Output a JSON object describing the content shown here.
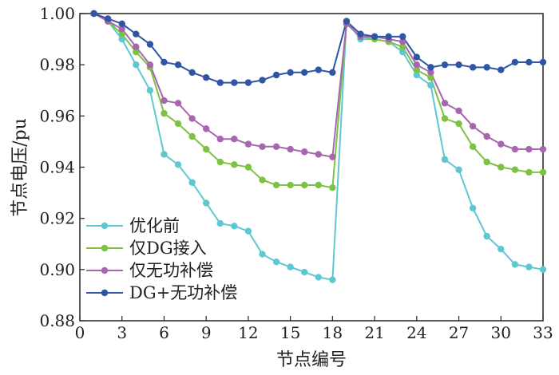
{
  "chart_data": {
    "type": "line",
    "xlabel": "节点编号",
    "ylabel": "节点电压/pu",
    "xlim": [
      0,
      33
    ],
    "ylim": [
      0.88,
      1.0
    ],
    "xticks": [
      0,
      3,
      6,
      9,
      12,
      15,
      18,
      21,
      24,
      27,
      30,
      33
    ],
    "yticks": [
      0.88,
      0.9,
      0.92,
      0.94,
      0.96,
      0.98,
      1.0
    ],
    "xtick_labels": [
      "0",
      "3",
      "6",
      "9",
      "12",
      "15",
      "18",
      "21",
      "24",
      "27",
      "30",
      "33"
    ],
    "ytick_labels": [
      "0.88",
      "0.90",
      "0.92",
      "0.94",
      "0.96",
      "0.98",
      "1.00"
    ],
    "grid": false,
    "legend_position": "bottom-left",
    "segments": [
      [
        1,
        18
      ],
      [
        19,
        33
      ]
    ],
    "connector": [
      18,
      19
    ],
    "series": [
      {
        "name": "优化前",
        "color": "#5ec8d2",
        "x": [
          1,
          2,
          3,
          4,
          5,
          6,
          7,
          8,
          9,
          10,
          11,
          12,
          13,
          14,
          15,
          16,
          17,
          18,
          19,
          20,
          21,
          22,
          23,
          24,
          25,
          26,
          27,
          28,
          29,
          30,
          31,
          32,
          33
        ],
        "values": [
          1.0,
          0.997,
          0.99,
          0.98,
          0.97,
          0.945,
          0.941,
          0.934,
          0.926,
          0.918,
          0.917,
          0.915,
          0.906,
          0.903,
          0.901,
          0.899,
          0.897,
          0.896,
          0.997,
          0.99,
          0.99,
          0.989,
          0.985,
          0.976,
          0.972,
          0.943,
          0.939,
          0.924,
          0.913,
          0.908,
          0.902,
          0.901,
          0.9
        ]
      },
      {
        "name": "仅DG接入",
        "color": "#7dc242",
        "x": [
          1,
          2,
          3,
          4,
          5,
          6,
          7,
          8,
          9,
          10,
          11,
          12,
          13,
          14,
          15,
          16,
          17,
          18,
          19,
          20,
          21,
          22,
          23,
          24,
          25,
          26,
          27,
          28,
          29,
          30,
          31,
          32,
          33
        ],
        "values": [
          1.0,
          0.997,
          0.992,
          0.985,
          0.979,
          0.961,
          0.957,
          0.952,
          0.947,
          0.942,
          0.941,
          0.94,
          0.935,
          0.933,
          0.933,
          0.933,
          0.933,
          0.932,
          0.996,
          0.991,
          0.99,
          0.989,
          0.987,
          0.978,
          0.975,
          0.959,
          0.957,
          0.948,
          0.942,
          0.94,
          0.939,
          0.938,
          0.938
        ]
      },
      {
        "name": "仅无功补偿",
        "color": "#a866b0",
        "x": [
          1,
          2,
          3,
          4,
          5,
          6,
          7,
          8,
          9,
          10,
          11,
          12,
          13,
          14,
          15,
          16,
          17,
          18,
          19,
          20,
          21,
          22,
          23,
          24,
          25,
          26,
          27,
          28,
          29,
          30,
          31,
          32,
          33
        ],
        "values": [
          1.0,
          0.997,
          0.994,
          0.987,
          0.98,
          0.966,
          0.965,
          0.959,
          0.955,
          0.951,
          0.951,
          0.949,
          0.948,
          0.948,
          0.947,
          0.946,
          0.945,
          0.944,
          0.996,
          0.991,
          0.991,
          0.99,
          0.989,
          0.98,
          0.977,
          0.965,
          0.962,
          0.956,
          0.952,
          0.949,
          0.947,
          0.947,
          0.947
        ]
      },
      {
        "name": "DG+无功补偿",
        "color": "#2f55a4",
        "x": [
          1,
          2,
          3,
          4,
          5,
          6,
          7,
          8,
          9,
          10,
          11,
          12,
          13,
          14,
          15,
          16,
          17,
          18,
          19,
          20,
          21,
          22,
          23,
          24,
          25,
          26,
          27,
          28,
          29,
          30,
          31,
          32,
          33
        ],
        "values": [
          1.0,
          0.998,
          0.996,
          0.992,
          0.988,
          0.981,
          0.98,
          0.977,
          0.975,
          0.973,
          0.973,
          0.973,
          0.974,
          0.976,
          0.977,
          0.977,
          0.978,
          0.977,
          0.997,
          0.992,
          0.991,
          0.991,
          0.991,
          0.983,
          0.979,
          0.98,
          0.98,
          0.979,
          0.979,
          0.978,
          0.981,
          0.981,
          0.981
        ]
      }
    ]
  }
}
